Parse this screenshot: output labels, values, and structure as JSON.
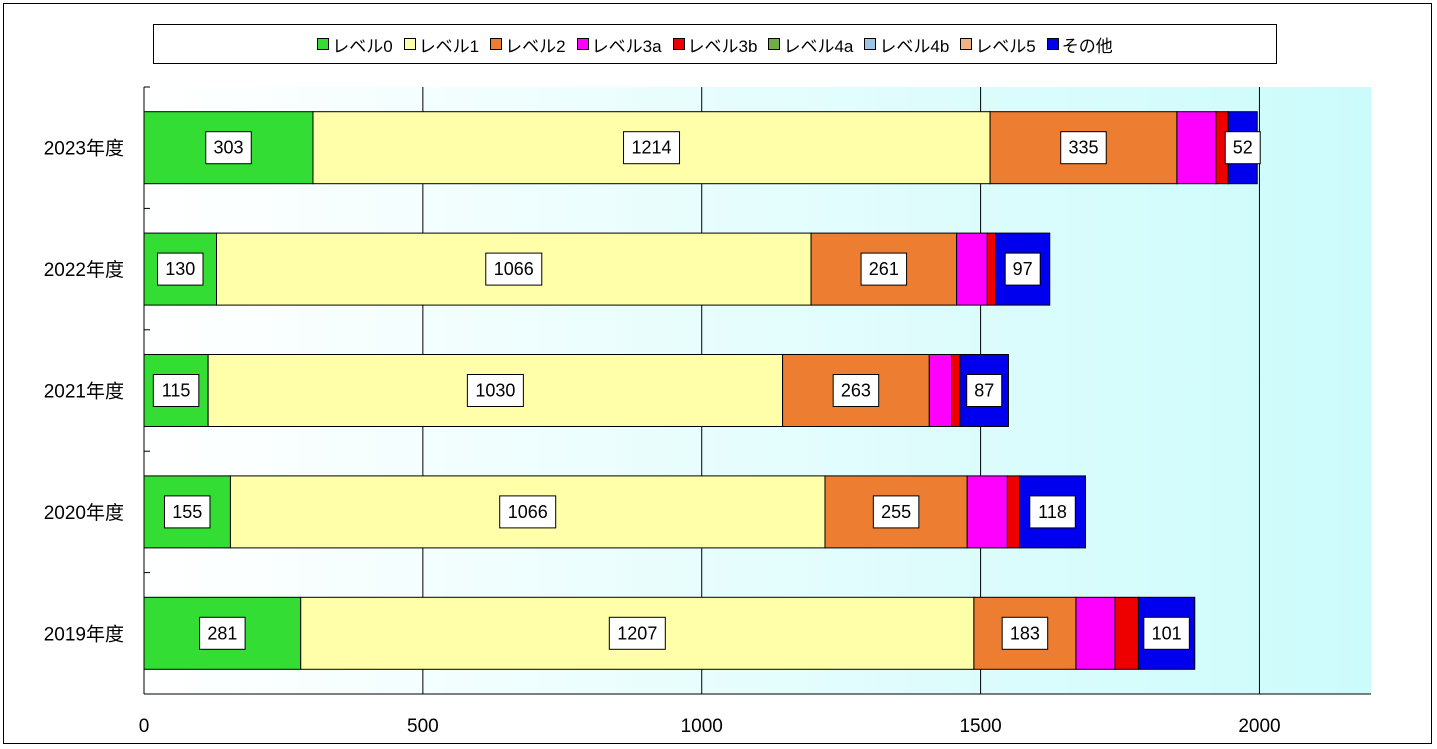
{
  "chart_data": {
    "type": "bar",
    "orientation": "horizontal",
    "stacked": true,
    "title": "",
    "xlabel": "",
    "ylabel": "",
    "xlim": [
      0,
      2200
    ],
    "xticks": [
      0,
      500,
      1000,
      1500,
      2000
    ],
    "grid": "vertical",
    "legend_position": "top",
    "categories": [
      "2023年度",
      "2022年度",
      "2021年度",
      "2020年度",
      "2019年度"
    ],
    "series": [
      {
        "name": "レベル0",
        "color": "#33dd33",
        "values": [
          303,
          130,
          115,
          155,
          281
        ],
        "labeled": true
      },
      {
        "name": "レベル1",
        "color": "#ffffaa",
        "values": [
          1214,
          1066,
          1030,
          1066,
          1207
        ],
        "labeled": true
      },
      {
        "name": "レベル2",
        "color": "#ed7d31",
        "values": [
          335,
          261,
          263,
          255,
          183
        ],
        "labeled": true
      },
      {
        "name": "レベル3a",
        "color": "#ff00ff",
        "values": [
          70,
          55,
          40,
          72,
          70
        ],
        "labeled": false
      },
      {
        "name": "レベル3b",
        "color": "#ee0000",
        "values": [
          22,
          15,
          15,
          22,
          42
        ],
        "labeled": false
      },
      {
        "name": "レベル4a",
        "color": "#70ad47",
        "values": [
          0,
          0,
          0,
          0,
          0
        ],
        "labeled": false
      },
      {
        "name": "レベル4b",
        "color": "#9dc3e6",
        "values": [
          0,
          0,
          0,
          0,
          0
        ],
        "labeled": false
      },
      {
        "name": "レベル5",
        "color": "#f4b183",
        "values": [
          0,
          0,
          0,
          0,
          0
        ],
        "labeled": false
      },
      {
        "name": "その他",
        "color": "#0000ee",
        "values": [
          52,
          97,
          87,
          118,
          101
        ],
        "labeled": true
      }
    ],
    "background": {
      "left_color": "#ffffff",
      "right_color": "#ccfbfb"
    }
  }
}
